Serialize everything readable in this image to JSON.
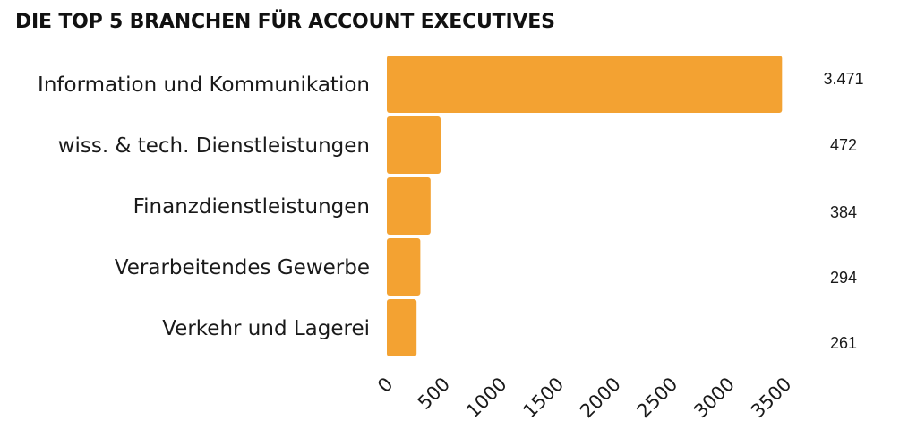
{
  "title": "DIE TOP 5 BRANCHEN FÜR ACCOUNT EXECUTIVES",
  "colors": {
    "bar": "#f3a232",
    "text": "#1a1a1a"
  },
  "chart_data": {
    "type": "bar",
    "orientation": "horizontal",
    "title": "DIE TOP 5 BRANCHEN FÜR ACCOUNT EXECUTIVES",
    "categories": [
      "Information und Kommunikation",
      "wiss. & tech. Dienstleistungen",
      "Finanzdienstleistungen",
      "Verarbeitendes Gewerbe",
      "Verkehr und Lagerei"
    ],
    "values": [
      3471,
      472,
      384,
      294,
      261
    ],
    "value_labels": [
      "3.471",
      "472",
      "384",
      "294",
      "261"
    ],
    "xlim": [
      0,
      3500
    ],
    "xticks": [
      "0",
      "500",
      "1000",
      "1500",
      "2000",
      "2500",
      "3000",
      "3500"
    ],
    "xlabel": "",
    "ylabel": "",
    "grid": false,
    "legend": false
  }
}
